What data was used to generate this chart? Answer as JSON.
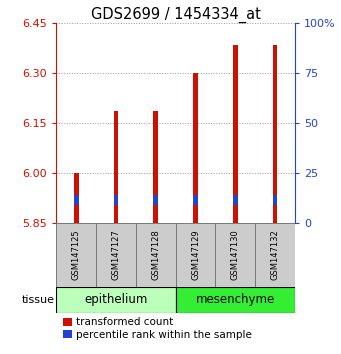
{
  "title": "GDS2699 / 1454334_at",
  "samples": [
    "GSM147125",
    "GSM147127",
    "GSM147128",
    "GSM147129",
    "GSM147130",
    "GSM147132"
  ],
  "red_values": [
    6.0,
    6.185,
    6.185,
    6.3,
    6.385,
    6.385
  ],
  "blue_top": [
    5.935,
    5.935,
    5.935,
    5.935,
    5.935,
    5.935
  ],
  "blue_bottom": [
    5.905,
    5.905,
    5.905,
    5.905,
    5.905,
    5.905
  ],
  "baseline": 5.85,
  "ylim_left": [
    5.85,
    6.45
  ],
  "yticks_left": [
    5.85,
    6.0,
    6.15,
    6.3,
    6.45
  ],
  "ylim_right": [
    0,
    100
  ],
  "yticks_right": [
    0,
    25,
    50,
    75,
    100
  ],
  "ytick_labels_right": [
    "0",
    "25",
    "50",
    "75",
    "100%"
  ],
  "groups": [
    {
      "label": "epithelium",
      "indices": [
        0,
        1,
        2
      ],
      "color": "#bbffbb"
    },
    {
      "label": "mesenchyme",
      "indices": [
        3,
        4,
        5
      ],
      "color": "#33ee33"
    }
  ],
  "tissue_label": "tissue",
  "bar_color_red": "#cc1100",
  "bar_color_blue": "#2244cc",
  "bar_width": 0.12,
  "bg_plot": "#ffffff",
  "grid_color": "#999999",
  "title_fontsize": 10.5,
  "tick_fontsize": 8,
  "legend_fontsize": 7.5
}
